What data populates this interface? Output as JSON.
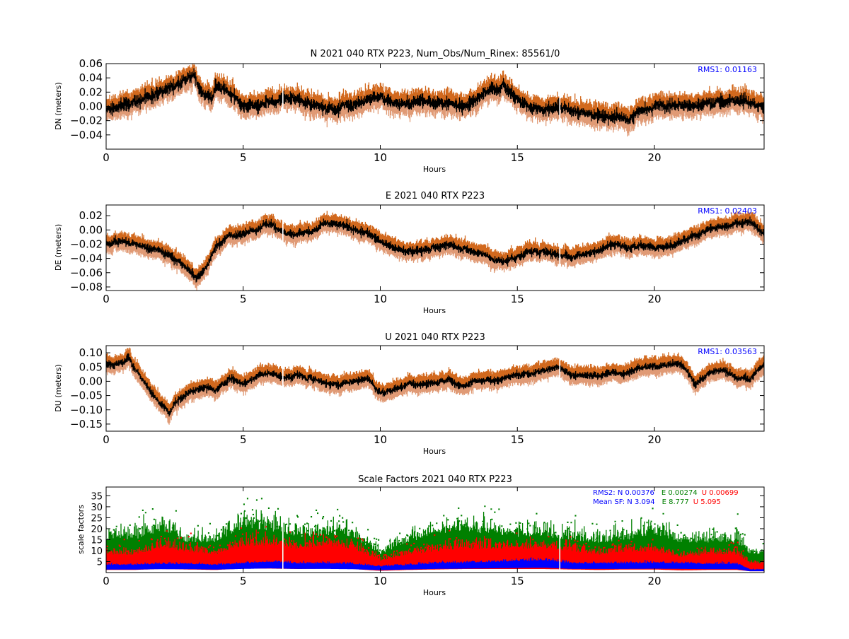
{
  "colors": {
    "upper_band": "#d2691e",
    "lower_band": "#e09a75",
    "mean_line": "#000000",
    "rms_text": "#0000ff",
    "sf_n": "#0000ff",
    "sf_e": "#008000",
    "sf_u": "#ff0000"
  },
  "chart_data": [
    {
      "type": "line",
      "title": "N 2021 040 RTX  P223, Num_Obs/Num_Rinex: 85561/0",
      "xlabel": "Hours",
      "ylabel": "DN (meters)",
      "xlim": [
        0,
        24
      ],
      "ylim": [
        -0.06,
        0.06
      ],
      "xticks": [
        "0",
        "5",
        "10",
        "15",
        "20"
      ],
      "yticks": [
        "0.06",
        "0.04",
        "0.02",
        "0.00",
        "−0.02",
        "−0.04"
      ],
      "annotation": "RMS1:  0.01163",
      "band_halfwidth": 0.012,
      "noise": 0.006,
      "series": [
        {
          "x": [
            0,
            0.5,
            1,
            1.5,
            2,
            2.5,
            3,
            3.2,
            3.5,
            3.9,
            4.0,
            4.5,
            5,
            5.5,
            6,
            6.5,
            7,
            7.5,
            8,
            8.5,
            9,
            9.5,
            10,
            10.5,
            11,
            11.5,
            12,
            12.5,
            13,
            13.5,
            14,
            14.5,
            15,
            15.5,
            16,
            16.5,
            17,
            17.5,
            18,
            18.5,
            19,
            19.5,
            20,
            20.5,
            21,
            21.5,
            22,
            22.5,
            23,
            23.5,
            24
          ],
          "values": [
            -0.005,
            0.0,
            0.005,
            0.012,
            0.02,
            0.03,
            0.04,
            0.045,
            0.02,
            0.01,
            0.03,
            0.02,
            0.0,
            0.0,
            0.005,
            0.01,
            0.012,
            0.0,
            -0.002,
            0.0,
            0.0,
            0.01,
            0.012,
            0.005,
            0.005,
            0.008,
            0.005,
            0.005,
            -0.002,
            0.01,
            0.025,
            0.028,
            0.01,
            0.0,
            -0.005,
            -0.002,
            -0.005,
            -0.01,
            -0.012,
            -0.015,
            -0.018,
            -0.005,
            0.0,
            0.0,
            0.002,
            0.0,
            0.005,
            0.005,
            0.01,
            0.005,
            -0.002
          ]
        }
      ]
    },
    {
      "type": "line",
      "title": "E 2021 040 RTX  P223",
      "xlabel": "Hours",
      "ylabel": "DE (meters)",
      "xlim": [
        0,
        24
      ],
      "ylim": [
        -0.085,
        0.035
      ],
      "xticks": [
        "0",
        "5",
        "10",
        "15",
        "20"
      ],
      "yticks": [
        "0.02",
        "0.00",
        "−0.02",
        "−0.04",
        "−0.06",
        "−0.08"
      ],
      "annotation": "RMS1:  0.02403",
      "band_halfwidth": 0.01,
      "noise": 0.004,
      "series": [
        {
          "x": [
            0,
            0.5,
            1,
            1.5,
            2,
            2.5,
            3,
            3.3,
            3.6,
            4,
            4.5,
            5,
            5.5,
            5.8,
            6.2,
            6.5,
            7,
            7.5,
            8,
            8.5,
            9,
            9.5,
            10,
            10.5,
            11,
            11.5,
            12,
            12.5,
            13,
            13.5,
            14,
            14.5,
            15,
            15.5,
            16,
            16.5,
            17,
            17.5,
            18,
            18.5,
            19,
            19.5,
            20,
            20.5,
            21,
            21.5,
            22,
            22.5,
            23,
            23.5,
            24
          ],
          "values": [
            -0.018,
            -0.015,
            -0.02,
            -0.025,
            -0.03,
            -0.04,
            -0.055,
            -0.068,
            -0.055,
            -0.025,
            -0.008,
            -0.005,
            0.0,
            0.01,
            0.002,
            -0.003,
            -0.005,
            -0.002,
            0.01,
            0.008,
            0.002,
            -0.005,
            -0.015,
            -0.025,
            -0.03,
            -0.028,
            -0.025,
            -0.02,
            -0.025,
            -0.03,
            -0.04,
            -0.045,
            -0.038,
            -0.03,
            -0.03,
            -0.035,
            -0.038,
            -0.035,
            -0.028,
            -0.02,
            -0.025,
            -0.022,
            -0.025,
            -0.022,
            -0.018,
            -0.008,
            0.0,
            0.005,
            0.01,
            0.012,
            -0.005
          ]
        }
      ]
    },
    {
      "type": "line",
      "title": "U 2021 040 RTX  P223",
      "xlabel": "Hours",
      "ylabel": "DU (meters)",
      "xlim": [
        0,
        24
      ],
      "ylim": [
        -0.175,
        0.125
      ],
      "xticks": [
        "0",
        "5",
        "10",
        "15",
        "20"
      ],
      "yticks": [
        "0.10",
        "0.05",
        "0.00",
        "−0.05",
        "−0.10",
        "−0.15"
      ],
      "annotation": "RMS1:  0.03563",
      "band_halfwidth": 0.025,
      "noise": 0.009,
      "series": [
        {
          "x": [
            0,
            0.3,
            0.7,
            0.8,
            1.0,
            1.5,
            2.0,
            2.3,
            2.5,
            3,
            3.5,
            4,
            4.5,
            5,
            5.5,
            6,
            6.5,
            7,
            7.5,
            8,
            8.5,
            9,
            9.5,
            10,
            10.5,
            11,
            11.5,
            12,
            12.5,
            13,
            13.5,
            14,
            14.5,
            15,
            15.5,
            16,
            16.5,
            17,
            17.5,
            18,
            18.5,
            19,
            19.5,
            20,
            20.5,
            21,
            21.5,
            22,
            22.5,
            23,
            23.5,
            24
          ],
          "values": [
            0.06,
            0.06,
            0.07,
            0.09,
            0.05,
            -0.02,
            -0.08,
            -0.11,
            -0.08,
            -0.04,
            -0.02,
            -0.03,
            0.01,
            -0.01,
            0.02,
            0.03,
            0.01,
            0.02,
            0.01,
            -0.01,
            -0.01,
            0.0,
            0.01,
            -0.04,
            -0.03,
            -0.01,
            -0.01,
            0.0,
            0.0,
            -0.02,
            0.0,
            0.0,
            0.01,
            0.02,
            0.03,
            0.04,
            0.05,
            0.02,
            0.02,
            0.02,
            0.03,
            0.03,
            0.05,
            0.05,
            0.06,
            0.06,
            -0.01,
            0.03,
            0.04,
            0.01,
            0.01,
            0.06
          ]
        }
      ]
    },
    {
      "type": "scatter",
      "title": "Scale Factors 2021 040 RTX  P223",
      "xlabel": "Hours",
      "ylabel": "scale factors",
      "xlim": [
        0,
        24
      ],
      "ylim": [
        0,
        39
      ],
      "xticks": [
        "0",
        "5",
        "10",
        "15",
        "20"
      ],
      "yticks": [
        "35",
        "30",
        "25",
        "20",
        "15",
        "10",
        "5"
      ],
      "annotation_rms2": {
        "prefix": "RMS2: N  0.00376",
        "e": "E  0.00274",
        "u": "U  0.00699"
      },
      "annotation_meansf": {
        "prefix": "Mean SF: N   3.094",
        "e": "E   8.777",
        "u": "U   5.095"
      },
      "series": [
        {
          "name": "N",
          "x": [
            0,
            1,
            2,
            3,
            4,
            5,
            6,
            7,
            8,
            9,
            10,
            11,
            12,
            13,
            14,
            15,
            16,
            17,
            18,
            19,
            20,
            21,
            22,
            23,
            23.5,
            24
          ],
          "values": [
            2.5,
            2.5,
            2.8,
            2.8,
            2.5,
            3.0,
            3.5,
            3.0,
            3.0,
            2.8,
            2.0,
            2.5,
            3.0,
            3.2,
            3.5,
            3.8,
            4.0,
            3.0,
            3.0,
            3.0,
            3.2,
            3.0,
            2.8,
            2.8,
            1.0,
            1.0
          ]
        },
        {
          "name": "E",
          "x": [
            0,
            1,
            2,
            3,
            4,
            5,
            6,
            7,
            8,
            9,
            10,
            11,
            12,
            13,
            14,
            15,
            16,
            17,
            18,
            19,
            20,
            21,
            22,
            23,
            23.5,
            24
          ],
          "values": [
            11,
            11,
            14,
            10,
            10,
            15,
            14,
            12,
            12,
            12,
            6,
            10,
            13,
            14,
            13,
            12,
            12,
            11,
            10,
            11,
            13,
            10,
            10,
            10,
            6,
            6
          ]
        },
        {
          "name": "U",
          "x": [
            0,
            1,
            2,
            3,
            4,
            5,
            6,
            7,
            8,
            9,
            10,
            11,
            12,
            13,
            14,
            15,
            16,
            17,
            18,
            19,
            20,
            21,
            22,
            23,
            23.5,
            24
          ],
          "values": [
            6,
            6,
            8,
            7,
            6,
            9,
            9,
            8,
            9,
            8,
            4,
            6,
            7,
            8,
            8,
            8,
            8,
            7,
            6,
            7,
            7,
            5,
            6,
            6,
            3,
            3
          ]
        }
      ]
    }
  ]
}
